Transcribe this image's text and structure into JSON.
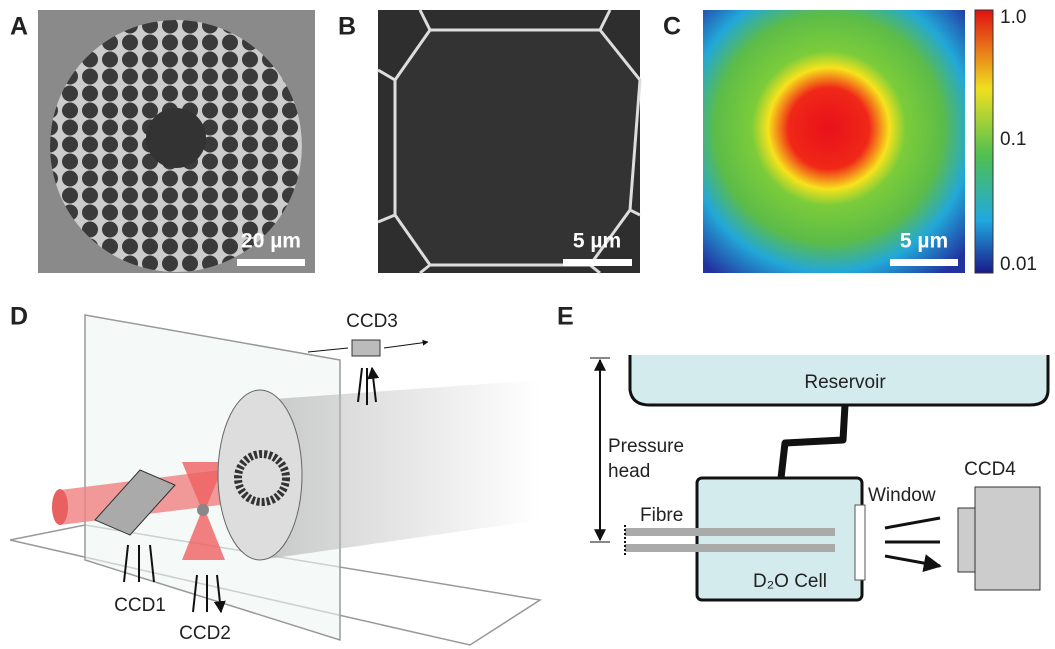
{
  "panels": {
    "a": {
      "label": "A",
      "scale_bar": "20 µm"
    },
    "b": {
      "label": "B",
      "scale_bar": "5 µm"
    },
    "c": {
      "label": "C",
      "scale_bar": "5 µm",
      "colorbar_ticks": [
        "1.0",
        "0.1",
        "0.01"
      ]
    },
    "d": {
      "label": "D",
      "cameras": [
        "CCD1",
        "CCD2",
        "CCD3"
      ]
    },
    "e": {
      "label": "E",
      "reservoir": "Reservoir",
      "pressure_head": [
        "Pressure",
        "head"
      ],
      "fibre": "Fibre",
      "window": "Window",
      "cell": "D₂O Cell",
      "camera": "CCD4"
    }
  }
}
